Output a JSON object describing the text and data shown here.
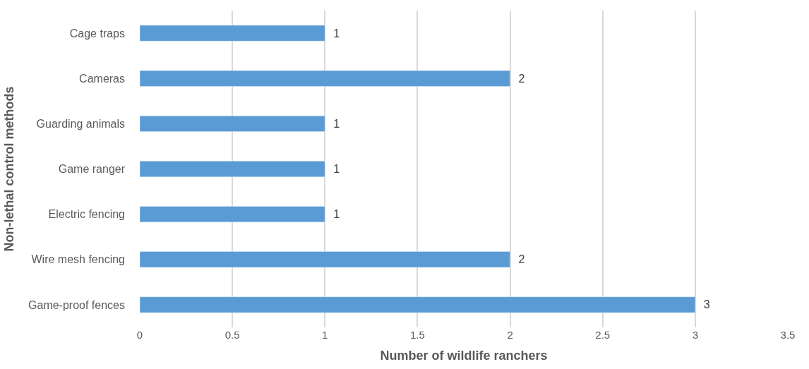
{
  "chart_data": {
    "type": "bar",
    "orientation": "horizontal",
    "xlabel": "Number of wildlife ranchers",
    "ylabel": "Non-lethal control methods",
    "categories": [
      "Cage traps",
      "Cameras",
      "Guarding animals",
      "Game ranger",
      "Electric fencing",
      "Wire mesh fencing",
      "Game-proof fences"
    ],
    "values": [
      1,
      2,
      1,
      1,
      1,
      2,
      3
    ],
    "color": "#5b9bd5",
    "xlim": [
      0,
      3.5
    ],
    "xticks": [
      0,
      0.5,
      1,
      1.5,
      2,
      2.5,
      3,
      3.5
    ],
    "grid": "x",
    "data_labels": true
  }
}
